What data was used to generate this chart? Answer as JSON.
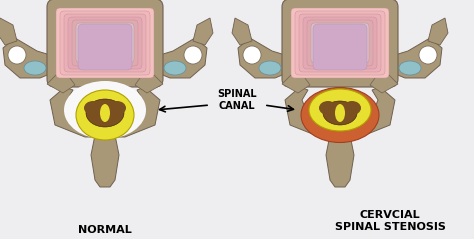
{
  "background_color": "#eeeef0",
  "label_normal": "NORMAL",
  "label_stenosis": "CERVCIAL\nSPINAL STENOSIS",
  "label_canal": "SPINAL\nCANAL",
  "bone_color": "#a89878",
  "bone_edge": "#706050",
  "disc_colors": [
    "#f5c8c8",
    "#f0bcc0",
    "#eab4bc",
    "#e4acb8",
    "#debab4",
    "#d8c0c8"
  ],
  "disc_inner_color": "#d8b8d0",
  "spinal_cord_yellow": "#e8e030",
  "spinal_cord_brown": "#7a5020",
  "stenosis_color": "#cc6030",
  "teal_color": "#90c0c8",
  "white_canal": "#f8f8f8",
  "arrow_color": "#000000",
  "font_size_label": 8,
  "font_size_canal": 7
}
